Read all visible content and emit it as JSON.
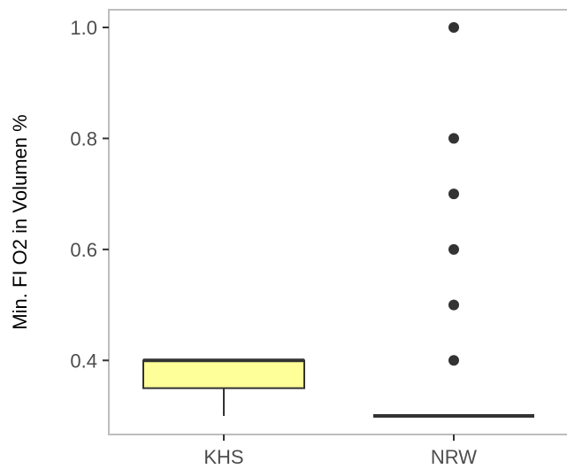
{
  "chart_data": {
    "type": "boxplot",
    "title": "",
    "xlabel": "",
    "ylabel": "Min. FI O2 in Volumen %",
    "ylim": [
      0.27,
      1.03
    ],
    "y_ticks": [
      0.4,
      0.6,
      0.8,
      1.0
    ],
    "y_tick_labels": [
      "0.4",
      "0.6",
      "0.8",
      "1.0"
    ],
    "grid": false,
    "legend": "none",
    "categories": [
      "KHS",
      "NRW"
    ],
    "boxes": [
      {
        "category": "KHS",
        "fill": "#ffff99",
        "min": 0.3,
        "q1": 0.35,
        "median": 0.4,
        "q3": 0.4,
        "max": 0.4,
        "outliers": []
      },
      {
        "category": "NRW",
        "fill": "#ffffff",
        "min": 0.3,
        "q1": 0.3,
        "median": 0.3,
        "q3": 0.3,
        "max": 0.3,
        "outliers": [
          0.4,
          0.5,
          0.6,
          0.7,
          0.8,
          1.0
        ]
      }
    ]
  }
}
